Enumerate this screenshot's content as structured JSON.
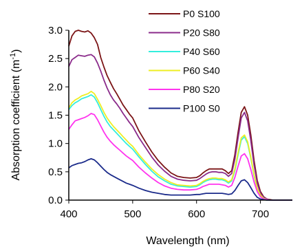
{
  "chart_data": {
    "type": "line",
    "xlabel": "Wavelength (nm)",
    "ylabel": "Absorption coefficient (m",
    "ylabel_sup": "-1",
    "ylabel_close": ")",
    "xlim": [
      400,
      750
    ],
    "ylim": [
      0,
      3.0
    ],
    "xticks": [
      400,
      500,
      600,
      700
    ],
    "xtick_labels": [
      "400",
      "500",
      "600",
      "700"
    ],
    "yticks": [
      0,
      0.5,
      1.0,
      1.5,
      2.0,
      2.5,
      3.0
    ],
    "ytick_labels": [
      "0.0",
      "0.5",
      "1.0",
      "1.5",
      "2.0",
      "2.5",
      "3.0"
    ],
    "grid": false,
    "legend_position": "top-right",
    "x": [
      400,
      405,
      410,
      415,
      420,
      425,
      430,
      435,
      440,
      445,
      450,
      455,
      460,
      465,
      470,
      475,
      480,
      485,
      490,
      495,
      500,
      510,
      520,
      530,
      540,
      550,
      560,
      570,
      580,
      590,
      600,
      605,
      610,
      615,
      620,
      625,
      630,
      635,
      640,
      645,
      650,
      655,
      660,
      665,
      670,
      675,
      680,
      685,
      690,
      695,
      700,
      705,
      710,
      715,
      720,
      730,
      740,
      750
    ],
    "series": [
      {
        "name": "P0 S100",
        "color": "#7b1416",
        "values": [
          2.72,
          2.9,
          2.98,
          3.0,
          2.98,
          2.97,
          2.99,
          2.95,
          2.87,
          2.75,
          2.52,
          2.35,
          2.2,
          2.08,
          1.97,
          1.88,
          1.78,
          1.68,
          1.6,
          1.52,
          1.45,
          1.22,
          1.03,
          0.85,
          0.7,
          0.58,
          0.48,
          0.42,
          0.4,
          0.39,
          0.4,
          0.43,
          0.48,
          0.52,
          0.55,
          0.55,
          0.55,
          0.55,
          0.55,
          0.52,
          0.47,
          0.52,
          0.8,
          1.2,
          1.55,
          1.65,
          1.5,
          1.15,
          0.7,
          0.35,
          0.15,
          0.06,
          0.02,
          0.01,
          0.0,
          0.0,
          0.0,
          0.0
        ]
      },
      {
        "name": "P20 S80",
        "color": "#8a2a8a",
        "values": [
          2.36,
          2.48,
          2.52,
          2.56,
          2.55,
          2.54,
          2.56,
          2.57,
          2.53,
          2.42,
          2.28,
          2.12,
          1.98,
          1.86,
          1.77,
          1.7,
          1.62,
          1.53,
          1.45,
          1.37,
          1.3,
          1.1,
          0.93,
          0.76,
          0.62,
          0.51,
          0.42,
          0.37,
          0.35,
          0.34,
          0.35,
          0.38,
          0.42,
          0.46,
          0.49,
          0.5,
          0.5,
          0.49,
          0.49,
          0.47,
          0.42,
          0.47,
          0.72,
          1.1,
          1.45,
          1.55,
          1.4,
          1.05,
          0.62,
          0.3,
          0.12,
          0.05,
          0.02,
          0.0,
          0.0,
          0.0,
          0.0,
          0.0
        ]
      },
      {
        "name": "P40 S60",
        "color": "#33eedd",
        "values": [
          1.6,
          1.67,
          1.72,
          1.75,
          1.79,
          1.81,
          1.83,
          1.86,
          1.82,
          1.72,
          1.6,
          1.48,
          1.38,
          1.3,
          1.24,
          1.18,
          1.12,
          1.06,
          1.0,
          0.95,
          0.9,
          0.76,
          0.63,
          0.51,
          0.41,
          0.34,
          0.28,
          0.25,
          0.24,
          0.23,
          0.24,
          0.27,
          0.31,
          0.34,
          0.36,
          0.37,
          0.37,
          0.36,
          0.36,
          0.34,
          0.3,
          0.34,
          0.52,
          0.8,
          1.06,
          1.12,
          1.0,
          0.74,
          0.43,
          0.2,
          0.08,
          0.03,
          0.01,
          0.0,
          0.0,
          0.0,
          0.0,
          0.0
        ]
      },
      {
        "name": "P60 S40",
        "color": "#eeee22",
        "values": [
          1.63,
          1.72,
          1.77,
          1.8,
          1.84,
          1.86,
          1.88,
          1.92,
          1.88,
          1.78,
          1.67,
          1.55,
          1.45,
          1.37,
          1.3,
          1.24,
          1.18,
          1.12,
          1.06,
          1.0,
          0.95,
          0.8,
          0.67,
          0.55,
          0.45,
          0.37,
          0.31,
          0.27,
          0.26,
          0.25,
          0.26,
          0.29,
          0.33,
          0.36,
          0.38,
          0.39,
          0.39,
          0.38,
          0.38,
          0.36,
          0.32,
          0.36,
          0.55,
          0.84,
          1.1,
          1.15,
          1.03,
          0.76,
          0.45,
          0.21,
          0.09,
          0.03,
          0.01,
          0.0,
          0.0,
          0.0,
          0.0,
          0.0
        ]
      },
      {
        "name": "P80 S20",
        "color": "#ff33ee",
        "values": [
          1.25,
          1.33,
          1.4,
          1.42,
          1.44,
          1.46,
          1.49,
          1.53,
          1.51,
          1.42,
          1.31,
          1.2,
          1.11,
          1.04,
          0.98,
          0.93,
          0.88,
          0.83,
          0.78,
          0.74,
          0.7,
          0.58,
          0.48,
          0.39,
          0.31,
          0.25,
          0.21,
          0.19,
          0.18,
          0.18,
          0.19,
          0.21,
          0.24,
          0.26,
          0.28,
          0.28,
          0.28,
          0.28,
          0.27,
          0.26,
          0.23,
          0.26,
          0.4,
          0.6,
          0.78,
          0.82,
          0.73,
          0.54,
          0.32,
          0.15,
          0.06,
          0.02,
          0.01,
          0.0,
          0.0,
          0.0,
          0.0,
          0.0
        ]
      },
      {
        "name": "P100 S0",
        "color": "#1a2a8a",
        "values": [
          0.57,
          0.61,
          0.63,
          0.65,
          0.66,
          0.68,
          0.71,
          0.73,
          0.71,
          0.66,
          0.6,
          0.54,
          0.49,
          0.45,
          0.42,
          0.39,
          0.36,
          0.33,
          0.3,
          0.28,
          0.26,
          0.21,
          0.17,
          0.14,
          0.12,
          0.1,
          0.09,
          0.09,
          0.09,
          0.09,
          0.1,
          0.1,
          0.11,
          0.12,
          0.12,
          0.12,
          0.12,
          0.12,
          0.12,
          0.11,
          0.1,
          0.11,
          0.17,
          0.26,
          0.34,
          0.36,
          0.31,
          0.22,
          0.12,
          0.05,
          0.02,
          0.01,
          0.0,
          0.0,
          0.0,
          0.0,
          0.0,
          0.0
        ]
      }
    ]
  }
}
